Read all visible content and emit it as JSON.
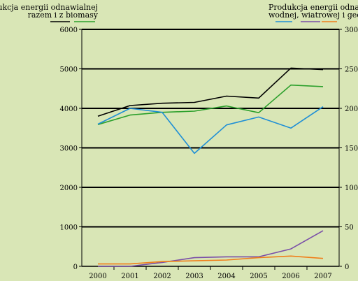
{
  "chart_data": {
    "type": "line",
    "categories": [
      "2000",
      "2001",
      "2002",
      "2003",
      "2004",
      "2005",
      "2006",
      "2007"
    ],
    "left_axis": {
      "ylim": [
        0,
        6000
      ],
      "ticks": [
        "0",
        "1000",
        "2000",
        "3000",
        "4000",
        "5000",
        "6000"
      ]
    },
    "right_axis": {
      "ylim": [
        0,
        300
      ],
      "ticks": [
        "0",
        "50",
        "100",
        "150",
        "200",
        "250",
        "300"
      ]
    },
    "legend_left": {
      "line1": "Produkcja energii odnawialnej",
      "line2": "razem i z biomasy"
    },
    "legend_right": {
      "line1": "Produkcja energii odnawi",
      "line2": "wodnej, wiatrowej i geoterm"
    },
    "grid": true,
    "series": [
      {
        "axis": "left",
        "color": "#000000",
        "values": [
          3800,
          4070,
          4130,
          4150,
          4310,
          4260,
          5020,
          4980
        ]
      },
      {
        "axis": "left",
        "color": "#2ca02c",
        "values": [
          3590,
          3830,
          3900,
          3930,
          4060,
          3890,
          4590,
          4550
        ]
      },
      {
        "axis": "right",
        "color": "#1f8fd6",
        "values": [
          180,
          200,
          195,
          143,
          179,
          189,
          175,
          202
        ]
      },
      {
        "axis": "right",
        "color": "#7a4fa8",
        "values": [
          0,
          0,
          5,
          11,
          12,
          12,
          22,
          45
        ]
      },
      {
        "axis": "right",
        "color": "#f07f1a",
        "values": [
          3,
          3,
          6,
          7,
          8,
          11,
          13,
          10
        ]
      }
    ]
  }
}
